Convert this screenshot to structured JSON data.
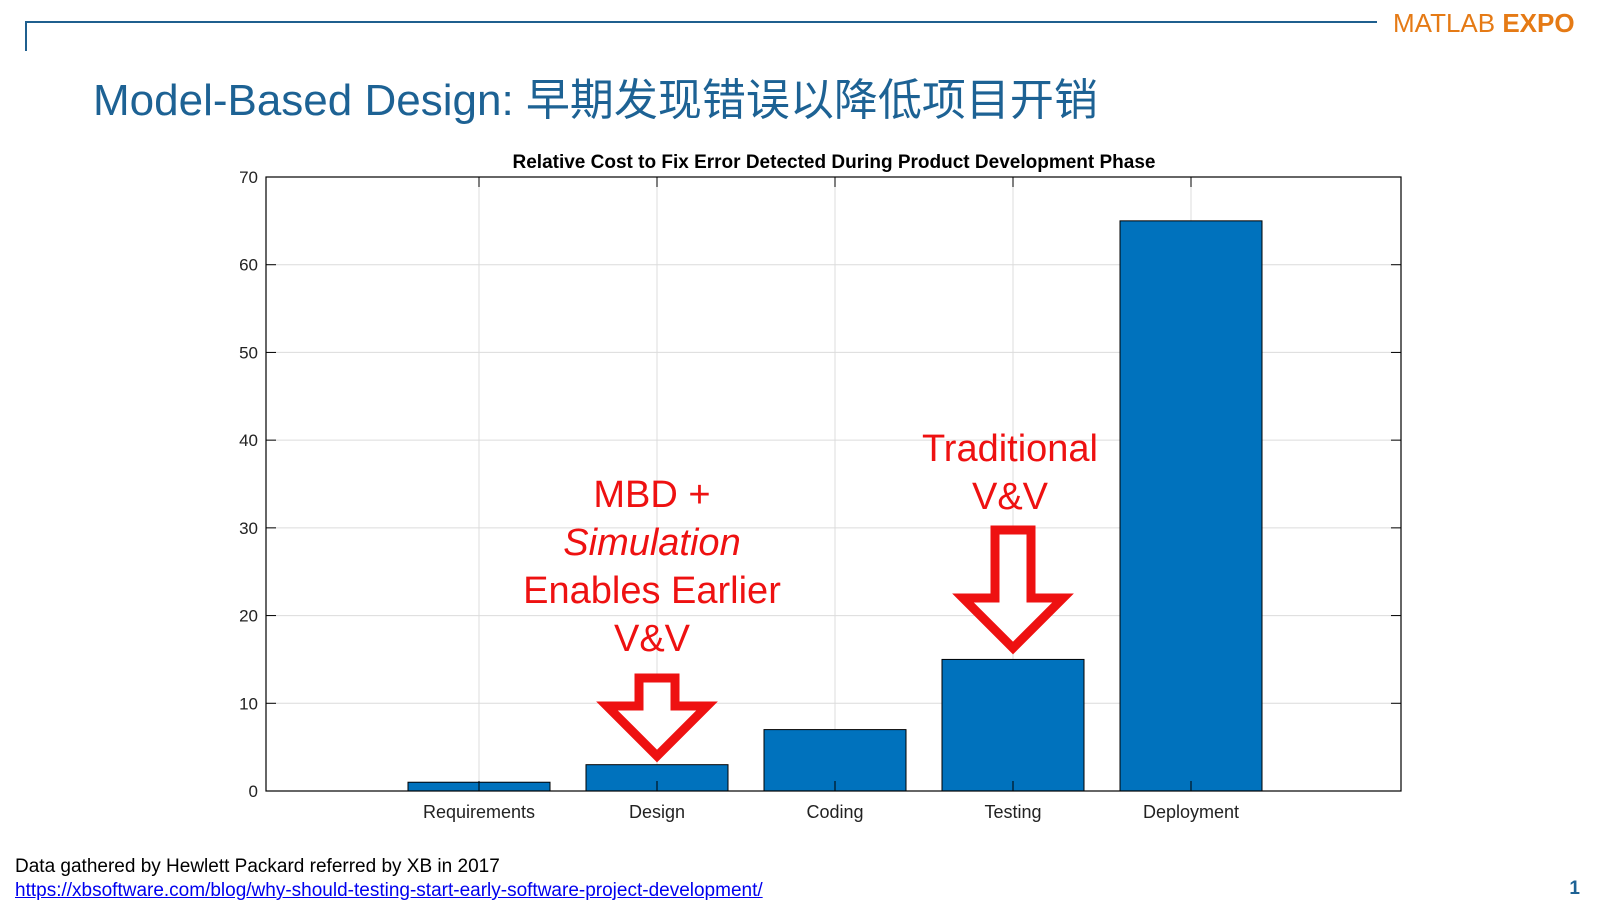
{
  "header": {
    "logo_text_a": "MATLAB",
    "logo_text_b": "EXPO",
    "title": "Model-Based Design: 早期发现错误以降低项目开销"
  },
  "colors": {
    "accent": "#1d6294",
    "bar": "#0072bd",
    "annotation": "#ee1111",
    "logo": "#e57a15"
  },
  "chart_data": {
    "type": "bar",
    "title": "Relative Cost to Fix Error Detected During Product Development Phase",
    "xlabel": "",
    "ylabel": "",
    "categories": [
      "Requirements",
      "Design",
      "Coding",
      "Testing",
      "Deployment"
    ],
    "values": [
      1,
      3,
      7,
      15,
      65
    ],
    "ylim": [
      0,
      70
    ],
    "yticks": [
      0,
      10,
      20,
      30,
      40,
      50,
      60,
      70
    ],
    "grid": true,
    "legend": "none"
  },
  "annotations": {
    "mbd": {
      "line1": "MBD +",
      "line2": "Simulation",
      "line3": "Enables Earlier",
      "line4": "V&V",
      "target_category": "Design",
      "arrow": "down-arrow-icon"
    },
    "traditional": {
      "line1": "Traditional",
      "line2": "V&V",
      "target_category": "Testing",
      "arrow": "down-arrow-icon"
    }
  },
  "footer": {
    "source_text": "Data gathered by Hewlett Packard referred by XB in 2017",
    "source_link": "https://xbsoftware.com/blog/why-should-testing-start-early-software-project-development/",
    "page_number": "1"
  }
}
